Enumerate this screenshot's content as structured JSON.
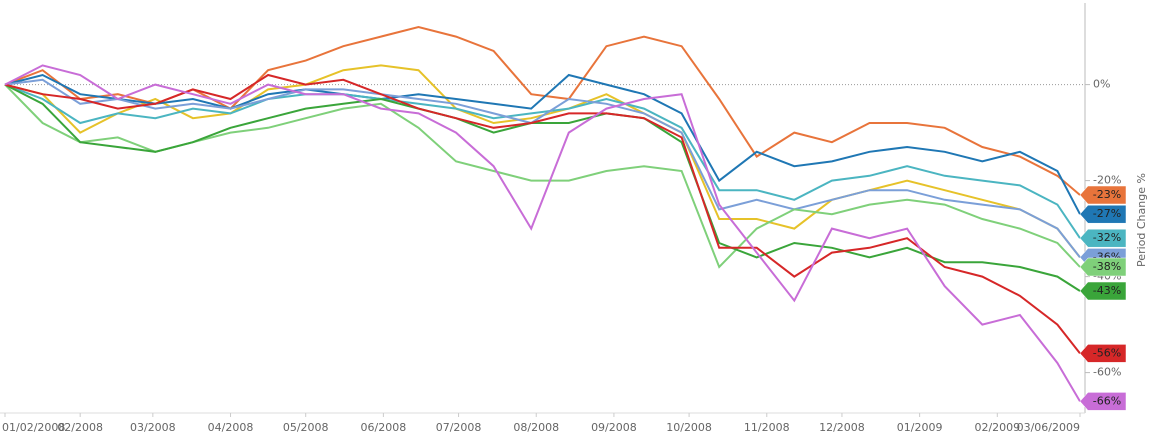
{
  "chart_data": {
    "type": "line",
    "y_label": "Period Change %",
    "x": [
      0,
      15,
      30,
      45,
      60,
      75,
      90,
      105,
      120,
      135,
      150,
      165,
      180,
      195,
      210,
      225,
      240,
      255,
      270,
      285,
      300,
      315,
      330,
      345,
      360,
      375,
      390,
      405,
      420,
      429
    ],
    "xlim": [
      0,
      429
    ],
    "xticks": [
      {
        "value": 0,
        "label": "01/02/2008"
      },
      {
        "value": 30,
        "label": "02/2008"
      },
      {
        "value": 59,
        "label": "03/2008"
      },
      {
        "value": 90,
        "label": "04/2008"
      },
      {
        "value": 120,
        "label": "05/2008"
      },
      {
        "value": 151,
        "label": "06/2008"
      },
      {
        "value": 181,
        "label": "07/2008"
      },
      {
        "value": 212,
        "label": "08/2008"
      },
      {
        "value": 243,
        "label": "09/2008"
      },
      {
        "value": 273,
        "label": "10/2008"
      },
      {
        "value": 304,
        "label": "11/2008"
      },
      {
        "value": 334,
        "label": "12/2008"
      },
      {
        "value": 365,
        "label": "01/2009"
      },
      {
        "value": 396,
        "label": "02/2009"
      },
      {
        "value": 429,
        "label": "03/06/2009"
      }
    ],
    "ylim": [
      -68,
      17
    ],
    "yticks": [
      {
        "value": 0,
        "label": "0%"
      },
      {
        "value": -20,
        "label": "-20%"
      },
      {
        "value": -40,
        "label": "-40%"
      },
      {
        "value": -60,
        "label": "-60%"
      }
    ],
    "zero_line": true,
    "series": [
      {
        "color": "#e6c229",
        "values": [
          0,
          -2,
          -10,
          -6,
          -3,
          -7,
          -6,
          -1,
          0,
          3,
          4,
          3,
          -5,
          -8,
          -7,
          -5,
          -2,
          -6,
          -10,
          -28,
          -28,
          -30,
          -24,
          -22,
          -20,
          -22,
          -24,
          -26,
          -30,
          -36
        ]
      },
      {
        "color": "#e8743b",
        "values": [
          0,
          3,
          -3,
          -2,
          -4,
          -1,
          -5,
          3,
          5,
          8,
          10,
          12,
          10,
          7,
          -2,
          -3,
          8,
          10,
          8,
          -3,
          -15,
          -10,
          -12,
          -8,
          -8,
          -9,
          -13,
          -15,
          -19,
          -23
        ],
        "value_labels": [
          null,
          null,
          null,
          null,
          null,
          null,
          null,
          null,
          null,
          null,
          null,
          null,
          null,
          null,
          null,
          null,
          null,
          null,
          null,
          null,
          null,
          null,
          null,
          null,
          null,
          null,
          null,
          null,
          null,
          "-23%"
        ]
      },
      {
        "color": "#1f77b4",
        "values": [
          0,
          2,
          -2,
          -3,
          -4,
          -3,
          -5,
          -2,
          -1,
          -2,
          -3,
          -2,
          -3,
          -4,
          -5,
          2,
          0,
          -2,
          -6,
          -20,
          -14,
          -17,
          -16,
          -14,
          -13,
          -14,
          -16,
          -14,
          -18,
          -27
        ],
        "value_labels": [
          null,
          null,
          null,
          null,
          null,
          null,
          null,
          null,
          null,
          null,
          null,
          null,
          null,
          null,
          null,
          null,
          null,
          null,
          null,
          null,
          null,
          null,
          null,
          null,
          null,
          null,
          null,
          null,
          null,
          "-27%"
        ]
      },
      {
        "color": "#4bb5c1",
        "values": [
          0,
          -3,
          -8,
          -6,
          -7,
          -5,
          -6,
          -3,
          -2,
          -2,
          -3,
          -4,
          -5,
          -7,
          -6,
          -5,
          -3,
          -5,
          -9,
          -22,
          -22,
          -24,
          -20,
          -19,
          -17,
          -19,
          -20,
          -21,
          -25,
          -32
        ],
        "value_labels": [
          null,
          null,
          null,
          null,
          null,
          null,
          null,
          null,
          null,
          null,
          null,
          null,
          null,
          null,
          null,
          null,
          null,
          null,
          null,
          null,
          null,
          null,
          null,
          null,
          null,
          null,
          null,
          null,
          null,
          "-32%"
        ]
      },
      {
        "color": "#7b9fd8",
        "values": [
          0,
          1,
          -4,
          -3,
          -5,
          -4,
          -5,
          -3,
          -1,
          -1,
          -2,
          -3,
          -4,
          -6,
          -8,
          -3,
          -4,
          -6,
          -10,
          -26,
          -24,
          -26,
          -24,
          -22,
          -22,
          -24,
          -25,
          -26,
          -30,
          -36
        ],
        "value_labels": [
          null,
          null,
          null,
          null,
          null,
          null,
          null,
          null,
          null,
          null,
          null,
          null,
          null,
          null,
          null,
          null,
          null,
          null,
          null,
          null,
          null,
          null,
          null,
          null,
          null,
          null,
          null,
          null,
          null,
          "-36%"
        ]
      },
      {
        "color": "#7fd07a",
        "values": [
          0,
          -8,
          -12,
          -11,
          -14,
          -12,
          -10,
          -9,
          -7,
          -5,
          -4,
          -9,
          -16,
          -18,
          -20,
          -20,
          -18,
          -17,
          -18,
          -38,
          -30,
          -26,
          -27,
          -25,
          -24,
          -25,
          -28,
          -30,
          -33,
          -38
        ],
        "value_labels": [
          null,
          null,
          null,
          null,
          null,
          null,
          null,
          null,
          null,
          null,
          null,
          null,
          null,
          null,
          null,
          null,
          null,
          null,
          null,
          null,
          null,
          null,
          null,
          null,
          null,
          null,
          null,
          null,
          null,
          "-38%"
        ]
      },
      {
        "color": "#3aa53a",
        "values": [
          0,
          -4,
          -12,
          -13,
          -14,
          -12,
          -9,
          -7,
          -5,
          -4,
          -3,
          -5,
          -7,
          -10,
          -8,
          -8,
          -6,
          -7,
          -12,
          -33,
          -36,
          -33,
          -34,
          -36,
          -34,
          -37,
          -37,
          -38,
          -40,
          -43
        ],
        "value_labels": [
          null,
          null,
          null,
          null,
          null,
          null,
          null,
          null,
          null,
          null,
          null,
          null,
          null,
          null,
          null,
          null,
          null,
          null,
          null,
          null,
          null,
          null,
          null,
          null,
          null,
          null,
          null,
          null,
          null,
          "-43%"
        ]
      },
      {
        "color": "#d62728",
        "values": [
          0,
          -2,
          -3,
          -5,
          -4,
          -1,
          -3,
          2,
          0,
          1,
          -2,
          -5,
          -7,
          -9,
          -8,
          -6,
          -6,
          -7,
          -11,
          -34,
          -34,
          -40,
          -35,
          -34,
          -32,
          -38,
          -40,
          -44,
          -50,
          -56
        ],
        "value_labels": [
          null,
          null,
          null,
          null,
          null,
          null,
          null,
          null,
          null,
          null,
          null,
          null,
          null,
          null,
          null,
          null,
          null,
          null,
          null,
          null,
          null,
          null,
          null,
          null,
          null,
          null,
          null,
          null,
          null,
          "-56%"
        ]
      },
      {
        "color": "#c86dd7",
        "values": [
          0,
          4,
          2,
          -3,
          0,
          -2,
          -4,
          0,
          -2,
          -2,
          -5,
          -6,
          -10,
          -17,
          -30,
          -10,
          -5,
          -3,
          -2,
          -25,
          -35,
          -45,
          -30,
          -32,
          -30,
          -42,
          -50,
          -48,
          -58,
          -66
        ],
        "value_labels": [
          null,
          null,
          null,
          null,
          null,
          null,
          null,
          null,
          null,
          null,
          null,
          null,
          null,
          null,
          null,
          null,
          null,
          null,
          null,
          null,
          null,
          null,
          null,
          null,
          null,
          null,
          null,
          null,
          null,
          "-66%"
        ]
      }
    ]
  }
}
